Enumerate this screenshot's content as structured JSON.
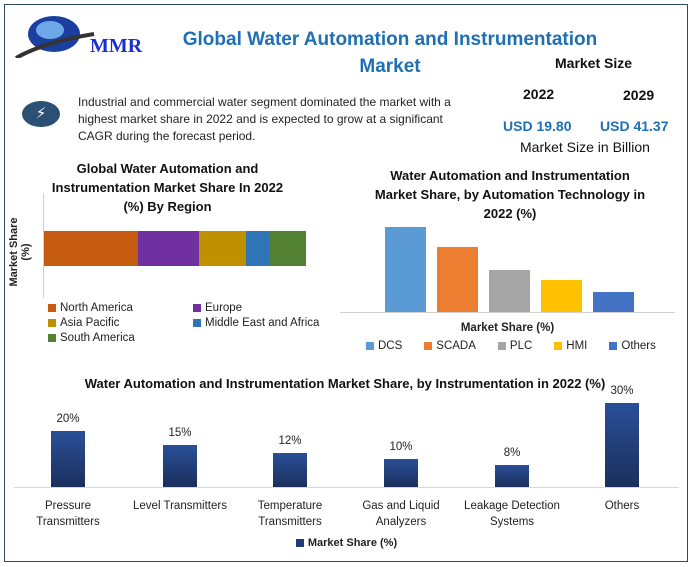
{
  "brand": {
    "logo_text": "MMR"
  },
  "header": {
    "title": "Global Water Automation and Instrumentation Market"
  },
  "market_size": {
    "label": "Market Size",
    "year1": "2022",
    "year2": "2029",
    "value1": "USD 19.80",
    "value2": "USD 41.37",
    "unit_label": "Market Size in Billion"
  },
  "highlight": {
    "icon": "lightning-icon",
    "text": "Industrial and commercial water segment dominated the market with a highest market share in 2022 and is expected to grow at a significant CAGR during the forecast period."
  },
  "chart_data": [
    {
      "type": "bar",
      "orientation": "horizontal-stacked",
      "title": "Global Water Automation and Instrumentation Market Share In 2022 (%) By Region",
      "ylabel": "Market Share (%)",
      "legend": "bottom",
      "series": [
        {
          "name": "North America",
          "values": [
            36
          ],
          "color": "#c55a11"
        },
        {
          "name": "Europe",
          "values": [
            23
          ],
          "color": "#7030a0"
        },
        {
          "name": "Asia Pacific",
          "values": [
            18
          ],
          "color": "#bf9000"
        },
        {
          "name": "Middle East and Africa",
          "values": [
            9
          ],
          "color": "#2e75b6"
        },
        {
          "name": "South America",
          "values": [
            14
          ],
          "color": "#548235"
        }
      ]
    },
    {
      "type": "bar",
      "title": "Water Automation and Instrumentation Market Share,  by Automation Technology in 2022 (%)",
      "xlabel": "Market Share (%)",
      "legend": "bottom",
      "categories": [
        "DCS",
        "SCADA",
        "PLC",
        "HMI",
        "Others"
      ],
      "values": [
        34,
        26,
        17,
        13,
        8
      ],
      "colors": [
        "#5b9bd5",
        "#ed7d31",
        "#a5a5a5",
        "#ffc000",
        "#4472c4"
      ]
    },
    {
      "type": "bar",
      "title": "Water Automation and Instrumentation Market Share, by Instrumentation  in 2022 (%)",
      "legend": "bottom",
      "categories": [
        "Pressure Transmitters",
        "Level Transmitters",
        "Temperature Transmitters",
        "Gas and Liquid Analyzers",
        "Leakage Detection Systems",
        "Others"
      ],
      "series": [
        {
          "name": "Market Share (%)",
          "values": [
            20,
            15,
            12,
            10,
            8,
            30
          ],
          "color": "#1f3c78"
        }
      ],
      "data_labels": [
        "20%",
        "15%",
        "12%",
        "10%",
        "8%",
        "30%"
      ]
    }
  ]
}
